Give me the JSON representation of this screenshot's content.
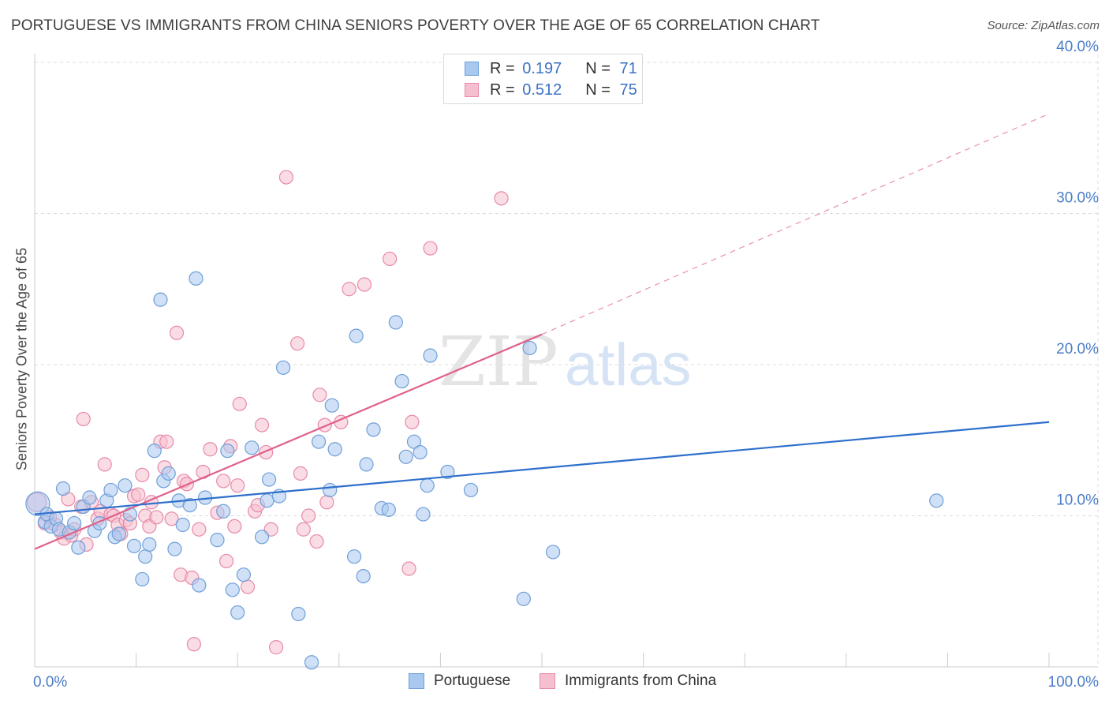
{
  "title": "PORTUGUESE VS IMMIGRANTS FROM CHINA SENIORS POVERTY OVER THE AGE OF 65 CORRELATION CHART",
  "source": "Source: ZipAtlas.com",
  "watermark": {
    "zip": "ZIP",
    "atlas": "atlas"
  },
  "legend_top": [
    {
      "r_label": "R =",
      "r_value": "0.197",
      "n_label": "N =",
      "n_value": "71"
    },
    {
      "r_label": "R =",
      "r_value": "0.512",
      "n_label": "N =",
      "n_value": "75"
    }
  ],
  "legend_bottom": [
    "Portuguese",
    "Immigrants from China"
  ],
  "colors": {
    "portuguese_fill": "#a9c8f0",
    "portuguese_stroke": "#6f9fd8",
    "portuguese_line": "#2f6fcc",
    "china_fill": "#f6bfd0",
    "china_stroke": "#e78aa8",
    "china_line": "#e0608a",
    "tick_text": "#4a7cc8",
    "grid": "#dddddd"
  },
  "chart_data": {
    "type": "scatter",
    "title": "PORTUGUESE VS IMMIGRANTS FROM CHINA SENIORS POVERTY OVER THE AGE OF 65 CORRELATION CHART",
    "xlabel": "",
    "ylabel": "Seniors Poverty Over the Age of 65",
    "xlim": [
      0,
      100
    ],
    "ylim": [
      0,
      40
    ],
    "x_tick_labels": [
      "0.0%",
      "100.0%"
    ],
    "y_ticks": [
      10,
      20,
      30,
      40
    ],
    "y_tick_labels": [
      "10.0%",
      "20.0%",
      "30.0%",
      "40.0%"
    ],
    "grid": true,
    "series": [
      {
        "name": "Portuguese",
        "r": 0.197,
        "n": 71,
        "trend": {
          "x": [
            0,
            100
          ],
          "y": [
            10.1,
            16.2
          ],
          "style": "solid"
        },
        "points": [
          [
            0.3,
            10.8,
            3
          ],
          [
            1.0,
            9.6,
            1
          ],
          [
            1.2,
            10.1,
            1
          ],
          [
            1.6,
            9.3,
            1
          ],
          [
            2.1,
            9.8,
            1
          ],
          [
            2.4,
            9.1,
            1
          ],
          [
            2.8,
            11.8,
            1
          ],
          [
            3.4,
            8.9,
            1
          ],
          [
            3.9,
            9.5,
            1
          ],
          [
            4.3,
            7.9,
            1
          ],
          [
            4.8,
            10.6,
            1
          ],
          [
            5.4,
            11.2,
            1
          ],
          [
            5.9,
            9.0,
            1
          ],
          [
            6.4,
            9.5,
            1
          ],
          [
            7.1,
            11.0,
            1
          ],
          [
            7.5,
            11.7,
            1
          ],
          [
            7.9,
            8.6,
            1
          ],
          [
            8.3,
            8.8,
            1
          ],
          [
            8.9,
            12.0,
            1
          ],
          [
            9.4,
            10.1,
            1
          ],
          [
            9.8,
            8.0,
            1
          ],
          [
            10.6,
            5.8,
            1
          ],
          [
            10.9,
            7.3,
            1
          ],
          [
            11.3,
            8.1,
            1
          ],
          [
            11.8,
            14.3,
            1
          ],
          [
            12.4,
            24.3,
            1
          ],
          [
            12.7,
            12.3,
            1
          ],
          [
            13.2,
            12.8,
            1
          ],
          [
            13.8,
            7.8,
            1
          ],
          [
            14.2,
            11.0,
            1
          ],
          [
            14.6,
            9.4,
            1
          ],
          [
            15.3,
            10.7,
            1
          ],
          [
            15.9,
            25.7,
            1
          ],
          [
            16.2,
            5.4,
            1
          ],
          [
            16.8,
            11.2,
            1
          ],
          [
            18.0,
            8.4,
            1
          ],
          [
            18.6,
            10.3,
            1
          ],
          [
            19.0,
            14.3,
            1
          ],
          [
            19.5,
            5.1,
            1
          ],
          [
            20.0,
            3.6,
            1
          ],
          [
            20.6,
            6.1,
            1
          ],
          [
            21.4,
            14.5,
            1
          ],
          [
            22.4,
            8.6,
            1
          ],
          [
            22.9,
            11.0,
            1
          ],
          [
            23.1,
            12.4,
            1
          ],
          [
            24.1,
            11.3,
            1
          ],
          [
            24.5,
            19.8,
            1
          ],
          [
            26.0,
            3.5,
            1
          ],
          [
            27.3,
            0.3,
            1
          ],
          [
            28.0,
            14.9,
            1
          ],
          [
            29.1,
            11.7,
            1
          ],
          [
            29.3,
            17.3,
            1
          ],
          [
            29.6,
            14.4,
            1
          ],
          [
            31.5,
            7.3,
            1
          ],
          [
            31.7,
            21.9,
            1
          ],
          [
            32.4,
            6.0,
            1
          ],
          [
            32.7,
            13.4,
            1
          ],
          [
            33.4,
            15.7,
            1
          ],
          [
            34.2,
            10.5,
            1
          ],
          [
            34.9,
            10.4,
            1
          ],
          [
            35.6,
            22.8,
            1
          ],
          [
            36.2,
            18.9,
            1
          ],
          [
            36.6,
            13.9,
            1
          ],
          [
            37.4,
            14.9,
            1
          ],
          [
            38.0,
            14.2,
            1
          ],
          [
            38.3,
            10.1,
            1
          ],
          [
            38.7,
            12.0,
            1
          ],
          [
            39.0,
            20.6,
            1
          ],
          [
            40.7,
            12.9,
            1
          ],
          [
            43.0,
            11.7,
            1
          ],
          [
            48.2,
            4.5,
            1
          ],
          [
            48.8,
            21.1,
            1
          ],
          [
            51.1,
            7.6,
            1
          ],
          [
            88.9,
            11.0,
            1
          ]
        ]
      },
      {
        "name": "Immigrants from China",
        "r": 0.512,
        "n": 75,
        "trend": {
          "x": [
            0,
            50
          ],
          "y": [
            7.8,
            22.0
          ],
          "style": "solid"
        },
        "trend_extension": {
          "x": [
            50,
            100
          ],
          "y": [
            22.0,
            36.6
          ],
          "style": "dashed"
        },
        "points": [
          [
            0.2,
            10.9,
            2
          ],
          [
            1.0,
            9.5,
            1
          ],
          [
            1.5,
            9.9,
            1
          ],
          [
            2.0,
            9.4,
            1
          ],
          [
            2.6,
            8.9,
            1
          ],
          [
            2.9,
            8.5,
            1
          ],
          [
            3.3,
            11.1,
            1
          ],
          [
            3.6,
            8.7,
            1
          ],
          [
            3.9,
            9.1,
            1
          ],
          [
            4.6,
            10.6,
            1
          ],
          [
            4.8,
            16.4,
            1
          ],
          [
            5.1,
            8.1,
            1
          ],
          [
            5.6,
            10.9,
            1
          ],
          [
            6.2,
            9.8,
            1
          ],
          [
            6.5,
            10.3,
            1
          ],
          [
            6.9,
            13.4,
            1
          ],
          [
            7.5,
            10.1,
            1
          ],
          [
            7.8,
            10.0,
            1
          ],
          [
            8.2,
            9.4,
            1
          ],
          [
            8.5,
            8.8,
            1
          ],
          [
            9.0,
            9.7,
            1
          ],
          [
            9.4,
            9.5,
            1
          ],
          [
            9.8,
            11.3,
            1
          ],
          [
            10.2,
            11.4,
            1
          ],
          [
            10.6,
            12.7,
            1
          ],
          [
            10.9,
            10.0,
            1
          ],
          [
            11.3,
            9.3,
            1
          ],
          [
            11.5,
            10.9,
            1
          ],
          [
            12.0,
            9.9,
            1
          ],
          [
            12.4,
            14.9,
            1
          ],
          [
            12.8,
            13.2,
            1
          ],
          [
            13.0,
            14.9,
            1
          ],
          [
            13.5,
            9.8,
            1
          ],
          [
            14.0,
            22.1,
            1
          ],
          [
            14.4,
            6.1,
            1
          ],
          [
            14.7,
            12.3,
            1
          ],
          [
            15.0,
            12.1,
            1
          ],
          [
            15.5,
            5.9,
            1
          ],
          [
            15.7,
            1.5,
            1
          ],
          [
            16.2,
            9.1,
            1
          ],
          [
            16.6,
            12.9,
            1
          ],
          [
            17.3,
            14.4,
            1
          ],
          [
            18.0,
            10.2,
            1
          ],
          [
            18.6,
            12.3,
            1
          ],
          [
            18.9,
            7.0,
            1
          ],
          [
            19.3,
            14.6,
            1
          ],
          [
            19.7,
            9.3,
            1
          ],
          [
            20.0,
            12.0,
            1
          ],
          [
            20.2,
            17.4,
            1
          ],
          [
            21.0,
            5.3,
            1
          ],
          [
            21.7,
            10.3,
            1
          ],
          [
            22.0,
            10.7,
            1
          ],
          [
            22.4,
            16.0,
            1
          ],
          [
            22.8,
            14.2,
            1
          ],
          [
            23.3,
            9.1,
            1
          ],
          [
            23.8,
            1.3,
            1
          ],
          [
            24.8,
            32.4,
            1
          ],
          [
            25.9,
            21.4,
            1
          ],
          [
            26.2,
            12.8,
            1
          ],
          [
            26.5,
            9.1,
            1
          ],
          [
            27.0,
            10.0,
            1
          ],
          [
            27.8,
            8.3,
            1
          ],
          [
            28.1,
            18.0,
            1
          ],
          [
            28.6,
            16.0,
            1
          ],
          [
            28.8,
            10.9,
            1
          ],
          [
            30.2,
            16.2,
            1
          ],
          [
            31.0,
            25.0,
            1
          ],
          [
            32.5,
            25.3,
            1
          ],
          [
            35.0,
            27.0,
            1
          ],
          [
            36.9,
            6.5,
            1
          ],
          [
            37.2,
            16.2,
            1
          ],
          [
            39.0,
            27.7,
            1
          ],
          [
            46.0,
            31.0,
            1
          ]
        ]
      }
    ]
  }
}
